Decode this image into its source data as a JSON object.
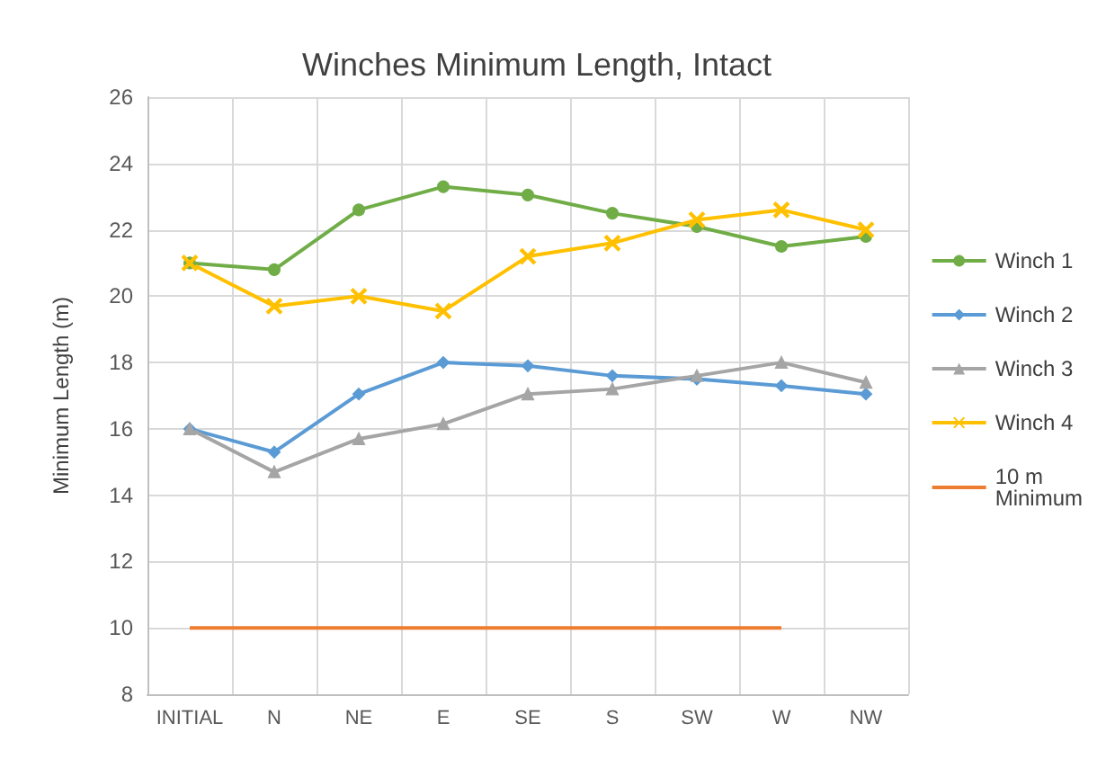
{
  "chart_data": {
    "type": "line",
    "title": "Winches Minimum Length, Intact",
    "ylabel": "Minimum Length (m)",
    "categories": [
      "INITIAL",
      "N",
      "NE",
      "E",
      "SE",
      "S",
      "SW",
      "W",
      "NW"
    ],
    "series": [
      {
        "name": "Winch 1",
        "color": "#70ad47",
        "marker": "circle",
        "values": [
          21.0,
          20.8,
          22.6,
          23.3,
          23.05,
          22.5,
          22.1,
          21.5,
          21.8
        ]
      },
      {
        "name": "Winch 2",
        "color": "#5b9bd5",
        "marker": "diamond",
        "values": [
          16.0,
          15.3,
          17.05,
          18.0,
          17.9,
          17.6,
          17.5,
          17.3,
          17.05
        ]
      },
      {
        "name": "Winch 3",
        "color": "#a5a5a5",
        "marker": "triangle",
        "values": [
          16.0,
          14.7,
          15.7,
          16.15,
          17.05,
          17.2,
          17.6,
          18.0,
          17.4
        ]
      },
      {
        "name": "Winch 4",
        "color": "#ffc000",
        "marker": "cross",
        "values": [
          21.0,
          19.7,
          20.0,
          19.55,
          21.2,
          21.6,
          22.3,
          22.6,
          22.0
        ]
      },
      {
        "name": "10 m Minimum",
        "color": "#ed7d31",
        "marker": "none",
        "values": [
          10,
          10,
          10,
          10,
          10,
          10,
          10,
          10,
          null
        ]
      }
    ],
    "ylim": [
      8,
      26
    ],
    "yticks": [
      8,
      10,
      12,
      14,
      16,
      18,
      20,
      22,
      24,
      26
    ],
    "grid": true,
    "legend": "right",
    "line_style": "solid"
  }
}
